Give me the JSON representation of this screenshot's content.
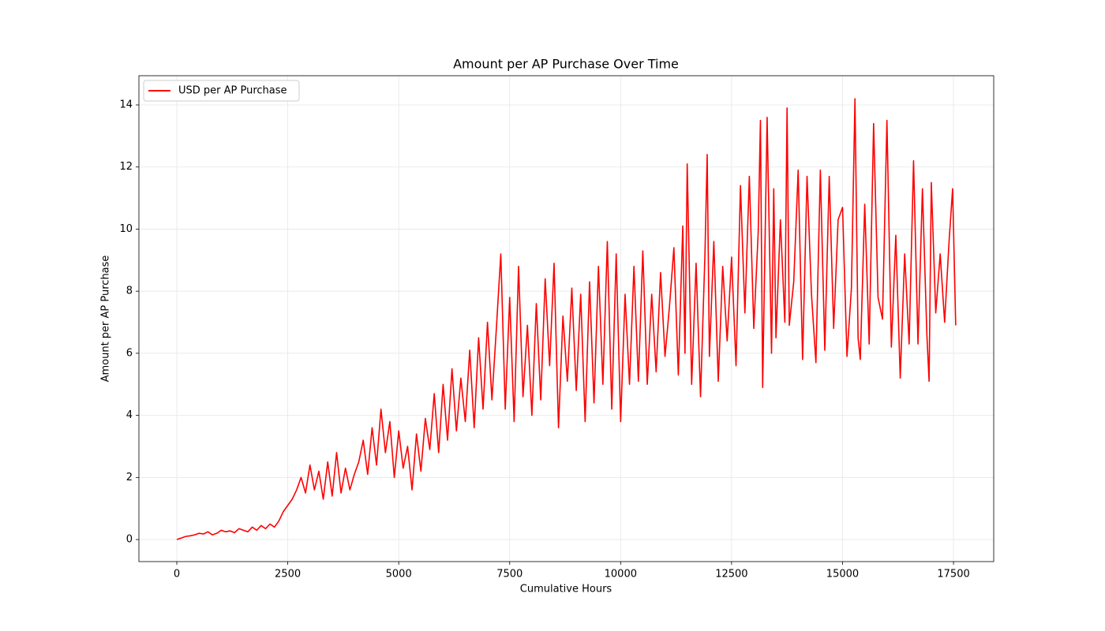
{
  "chart_data": {
    "type": "line",
    "title": "Amount per AP Purchase Over Time",
    "xlabel": "Cumulative Hours",
    "ylabel": "Amount per AP Purchase",
    "x": [
      0,
      100,
      200,
      300,
      400,
      500,
      600,
      700,
      800,
      900,
      1000,
      1100,
      1200,
      1300,
      1400,
      1500,
      1600,
      1700,
      1800,
      1900,
      2000,
      2100,
      2200,
      2300,
      2400,
      2500,
      2600,
      2700,
      2800,
      2900,
      3000,
      3100,
      3200,
      3300,
      3400,
      3500,
      3600,
      3700,
      3800,
      3900,
      4000,
      4100,
      4200,
      4300,
      4400,
      4500,
      4600,
      4700,
      4800,
      4900,
      5000,
      5100,
      5200,
      5300,
      5400,
      5500,
      5600,
      5700,
      5800,
      5900,
      6000,
      6100,
      6200,
      6300,
      6400,
      6500,
      6600,
      6700,
      6800,
      6900,
      7000,
      7100,
      7200,
      7300,
      7400,
      7500,
      7600,
      7700,
      7800,
      7900,
      8000,
      8100,
      8200,
      8300,
      8400,
      8500,
      8600,
      8700,
      8800,
      8900,
      9000,
      9100,
      9200,
      9300,
      9400,
      9500,
      9600,
      9700,
      9800,
      9900,
      10000,
      10100,
      10200,
      10300,
      10400,
      10500,
      10600,
      10700,
      10800,
      10900,
      11000,
      11100,
      11200,
      11300,
      11400,
      11450,
      11500,
      11600,
      11700,
      11800,
      11900,
      11950,
      12000,
      12100,
      12200,
      12300,
      12400,
      12500,
      12600,
      12700,
      12800,
      12900,
      13000,
      13100,
      13150,
      13200,
      13300,
      13400,
      13450,
      13500,
      13600,
      13700,
      13750,
      13800,
      13900,
      14000,
      14100,
      14200,
      14300,
      14400,
      14500,
      14600,
      14700,
      14800,
      14900,
      15000,
      15100,
      15200,
      15280,
      15350,
      15400,
      15500,
      15600,
      15700,
      15800,
      15900,
      16000,
      16100,
      16200,
      16300,
      16400,
      16500,
      16600,
      16700,
      16800,
      16900,
      16950,
      17000,
      17100,
      17200,
      17300,
      17400,
      17480,
      17550
    ],
    "series": [
      {
        "name": "USD per AP Purchase",
        "color": "#ff0000",
        "values": [
          0,
          0.05,
          0.1,
          0.12,
          0.15,
          0.2,
          0.18,
          0.25,
          0.15,
          0.2,
          0.3,
          0.25,
          0.28,
          0.22,
          0.35,
          0.3,
          0.25,
          0.4,
          0.3,
          0.45,
          0.35,
          0.5,
          0.4,
          0.6,
          0.9,
          1.1,
          1.3,
          1.6,
          2.0,
          1.5,
          2.4,
          1.6,
          2.2,
          1.3,
          2.5,
          1.4,
          2.8,
          1.5,
          2.3,
          1.6,
          2.1,
          2.5,
          3.2,
          2.1,
          3.6,
          2.4,
          4.2,
          2.8,
          3.8,
          2.0,
          3.5,
          2.3,
          3.0,
          1.6,
          3.4,
          2.2,
          3.9,
          2.9,
          4.7,
          2.8,
          5.0,
          3.2,
          5.5,
          3.5,
          5.2,
          3.8,
          6.1,
          3.6,
          6.5,
          4.2,
          7.0,
          4.5,
          6.8,
          9.2,
          4.2,
          7.8,
          3.8,
          8.8,
          4.6,
          6.9,
          4.0,
          7.6,
          4.5,
          8.4,
          5.6,
          8.9,
          3.6,
          7.2,
          5.1,
          8.1,
          4.8,
          7.9,
          3.8,
          8.3,
          4.4,
          8.8,
          5.0,
          9.6,
          4.2,
          9.2,
          3.8,
          7.9,
          5.0,
          8.8,
          5.1,
          9.3,
          5.0,
          7.9,
          5.4,
          8.6,
          5.9,
          7.5,
          9.4,
          5.3,
          10.1,
          6.0,
          12.1,
          5.0,
          8.9,
          4.6,
          9.2,
          12.4,
          5.9,
          9.6,
          5.1,
          8.8,
          6.4,
          9.1,
          5.6,
          11.4,
          7.3,
          11.7,
          6.8,
          9.9,
          13.5,
          4.9,
          13.6,
          6.0,
          11.3,
          6.5,
          10.3,
          7.0,
          13.9,
          6.9,
          8.3,
          11.9,
          5.8,
          11.7,
          7.9,
          5.7,
          11.9,
          6.1,
          11.7,
          6.8,
          10.3,
          10.7,
          5.9,
          8.1,
          14.2,
          6.5,
          5.8,
          10.8,
          6.3,
          13.4,
          7.8,
          7.1,
          13.5,
          6.2,
          9.8,
          5.2,
          9.2,
          6.3,
          12.2,
          6.3,
          11.3,
          6.6,
          5.1,
          11.5,
          7.3,
          9.2,
          7.0,
          9.6,
          11.3,
          6.9
        ]
      }
    ],
    "xlim": [
      -854,
      18406
    ],
    "ylim": [
      -0.71,
      14.94
    ],
    "xticks": [
      0,
      2500,
      5000,
      7500,
      10000,
      12500,
      15000,
      17500
    ],
    "yticks": [
      0,
      2,
      4,
      6,
      8,
      10,
      12,
      14
    ],
    "grid": true,
    "legend": "upper left"
  }
}
